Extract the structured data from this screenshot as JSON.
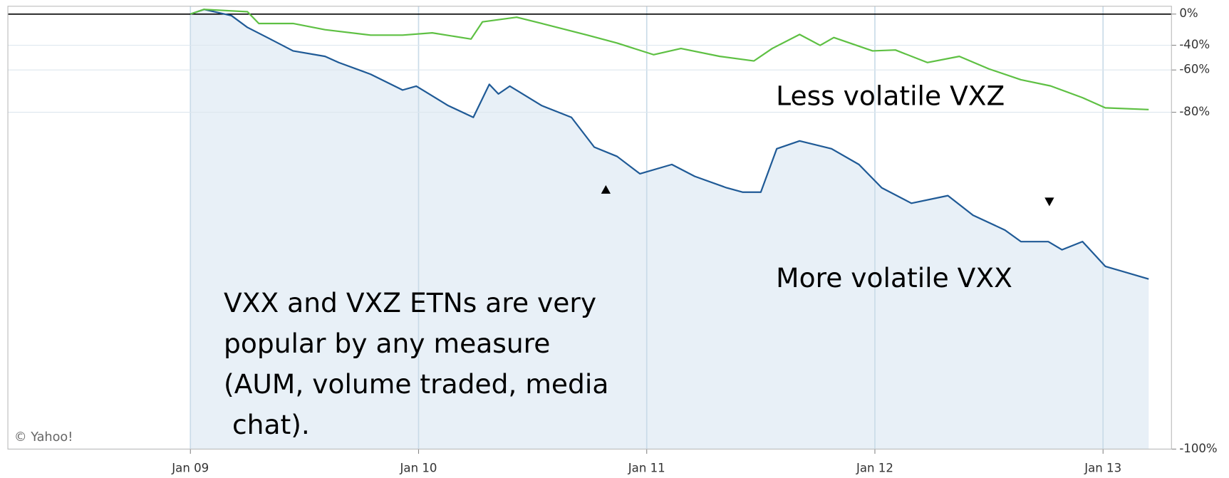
{
  "chart_data": {
    "type": "line",
    "log_scale": true,
    "grid": true,
    "xlim": [
      2008.2,
      2013.3
    ],
    "ylim": [
      -99.92,
      13.7
    ],
    "xticks": [
      {
        "value": 2009,
        "label": "Jan 09"
      },
      {
        "value": 2010,
        "label": "Jan 10"
      },
      {
        "value": 2011,
        "label": "Jan 11"
      },
      {
        "value": 2012,
        "label": "Jan 12"
      },
      {
        "value": 2013,
        "label": "Jan 13"
      }
    ],
    "yticks": [
      {
        "value": 0,
        "label": "0%"
      },
      {
        "value": -40,
        "label": "-40%"
      },
      {
        "value": -60,
        "label": "-60%"
      },
      {
        "value": -80,
        "label": "-80%"
      },
      {
        "value": -99.92,
        "label": "-100%"
      }
    ],
    "series": [
      {
        "color": "#1f5a96",
        "area_color": "#e8f0f7",
        "x": [
          2009.0,
          2009.06,
          2009.18,
          2009.25,
          2009.35,
          2009.45,
          2009.59,
          2009.65,
          2009.79,
          2009.93,
          2009.99,
          2010.13,
          2010.24,
          2010.31,
          2010.35,
          2010.4,
          2010.54,
          2010.67,
          2010.77,
          2010.87,
          2010.97,
          2011.11,
          2011.21,
          2011.35,
          2011.42,
          2011.5,
          2011.57,
          2011.67,
          2011.81,
          2011.93,
          2012.03,
          2012.16,
          2012.32,
          2012.43,
          2012.57,
          2012.64,
          2012.76,
          2012.82,
          2012.91,
          2013.01,
          2013.2
        ],
        "values": [
          0,
          8,
          -2.5,
          -19.6,
          -33.6,
          -45.3,
          -50,
          -54.8,
          -62.7,
          -71.2,
          -69.3,
          -77.7,
          -81.6,
          -68.4,
          -73,
          -69.3,
          -77.7,
          -81.6,
          -88.7,
          -90.3,
          -92.7,
          -91.5,
          -93,
          -94.2,
          -94.6,
          -94.6,
          -89,
          -87.5,
          -89,
          -91.5,
          -94.2,
          -95.5,
          -94.9,
          -96.3,
          -97.1,
          -97.6,
          -97.6,
          -97.9,
          -97.6,
          -98.4,
          -98.7
        ]
      },
      {
        "color": "#5ec043",
        "x": [
          2009.0,
          2009.06,
          2009.25,
          2009.3,
          2009.45,
          2009.59,
          2009.79,
          2009.93,
          2010.06,
          2010.23,
          2010.28,
          2010.43,
          2010.54,
          2010.74,
          2010.87,
          2011.03,
          2011.15,
          2011.32,
          2011.47,
          2011.55,
          2011.67,
          2011.76,
          2011.82,
          2011.99,
          2012.09,
          2012.23,
          2012.37,
          2012.5,
          2012.64,
          2012.77,
          2012.91,
          2013.01,
          2013.2
        ],
        "values": [
          0,
          8,
          3.9,
          -14.3,
          -14.3,
          -22.6,
          -29.2,
          -29.2,
          -26.5,
          -33.6,
          -12.0,
          -5,
          -14.3,
          -29.2,
          -37.8,
          -48.6,
          -43.1,
          -50,
          -53.6,
          -43.1,
          -28.4,
          -40.1,
          -31.9,
          -45.3,
          -44.5,
          -54.8,
          -50,
          -59.3,
          -65.9,
          -69.2,
          -74.6,
          -78.5,
          -79.1
        ]
      }
    ],
    "annotations": [
      "Less volatile VXZ",
      "More volatile VXX"
    ],
    "text_box": [
      "VXX and VXZ ETNs are very",
      "popular by any measure",
      "(AUM, volume traded, media",
      " chat)."
    ],
    "credit": "© Yahoo!"
  }
}
